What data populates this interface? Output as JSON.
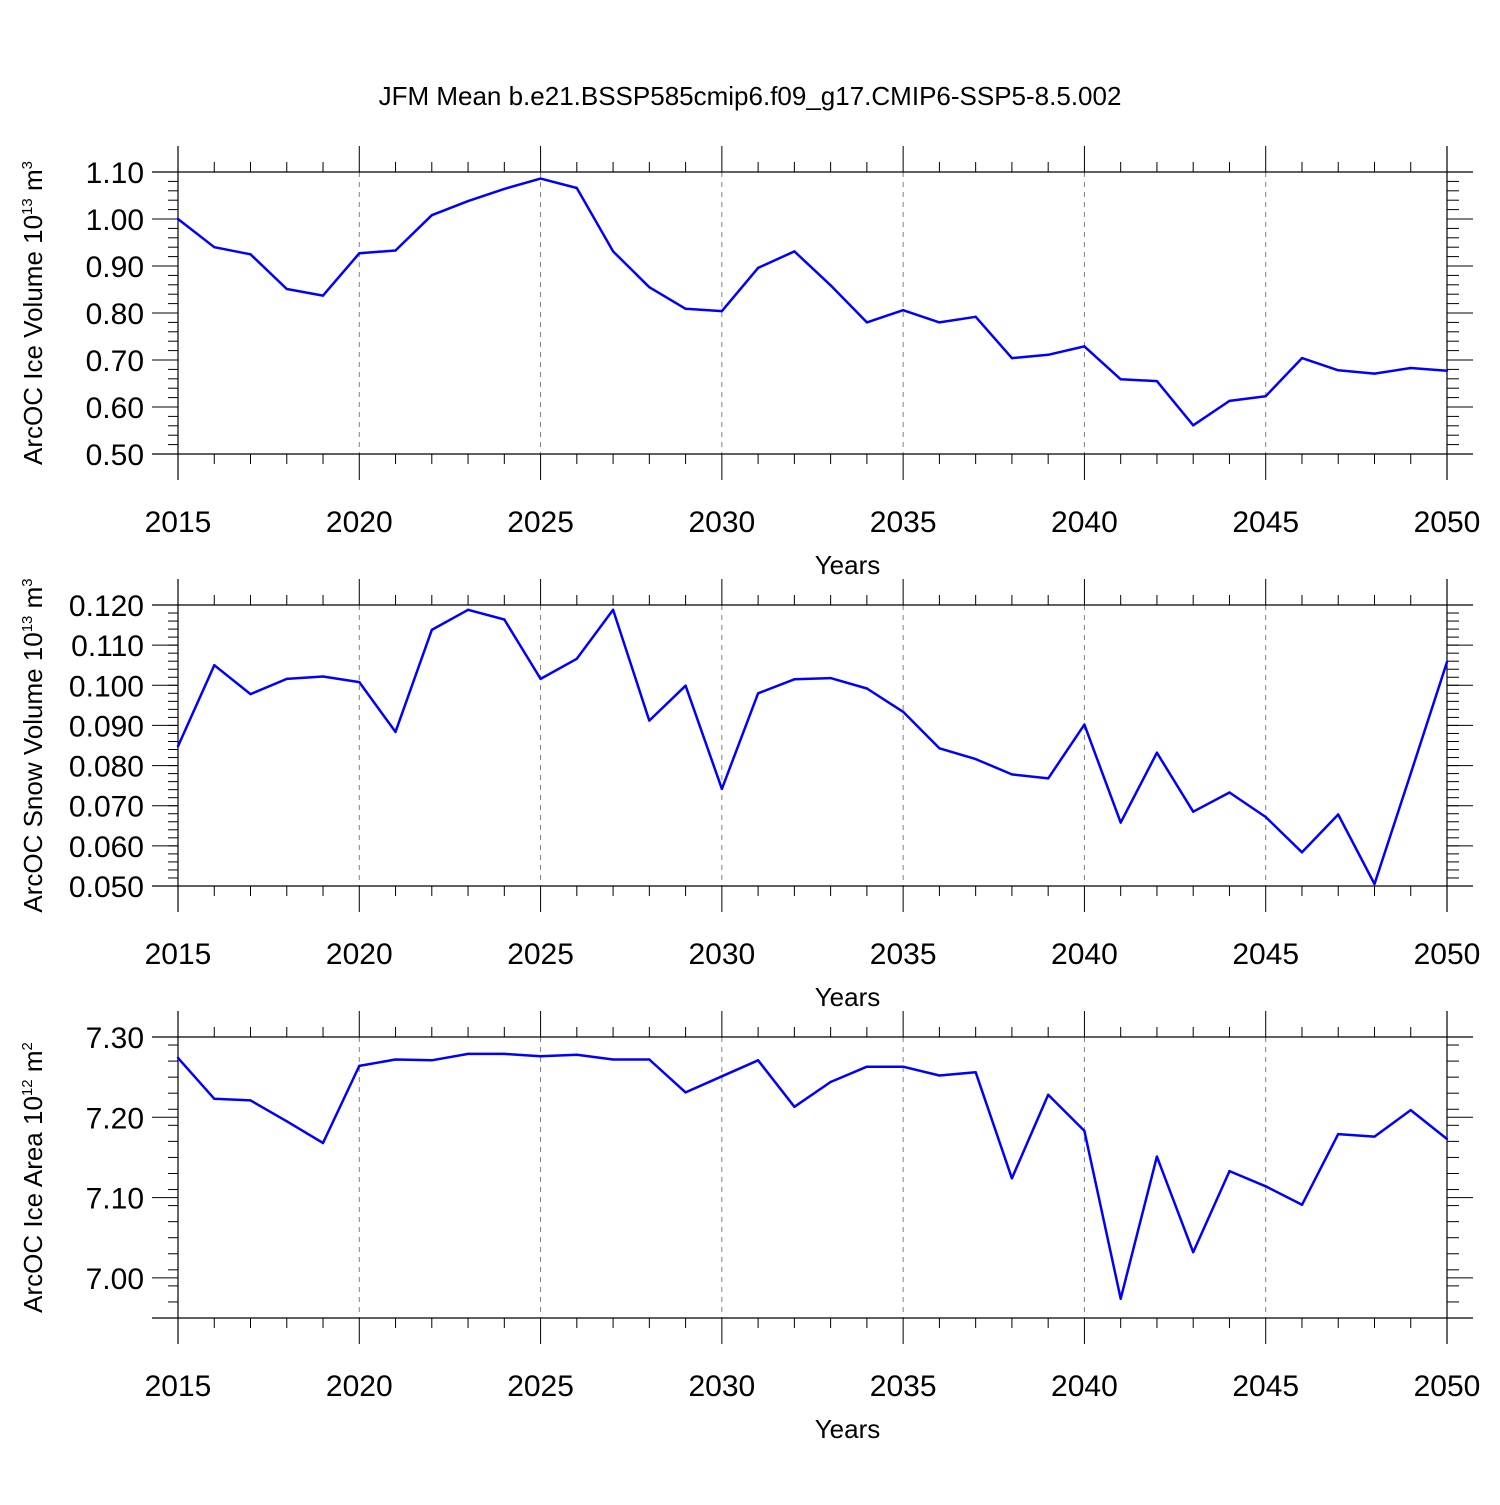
{
  "figure_title": "JFM Mean b.e21.BSSP585cmip6.f09_g17.CMIP6-SSP5-8.5.002",
  "colors": {
    "line": "#0000ff",
    "axis": "#000000",
    "grid": "#808080"
  },
  "chart_data": [
    {
      "type": "line",
      "ylabel": "ArcOC Ice Volume",
      "ylabel_units": "10",
      "ylabel_exp": "13",
      "ylabel_unit2": "m",
      "ylabel_unit2_exp": "3",
      "xlabel": "Years",
      "xlim": [
        2015,
        2050
      ],
      "ylim": [
        0.5,
        1.1
      ],
      "yticks": [
        0.5,
        0.6,
        0.7,
        0.8,
        0.9,
        1.0,
        1.1
      ],
      "ytick_labels": [
        "0.50",
        "0.60",
        "0.70",
        "0.80",
        "0.90",
        "1.00",
        "1.10"
      ],
      "xticks": [
        2015,
        2020,
        2025,
        2030,
        2035,
        2040,
        2045,
        2050
      ],
      "xtick_labels": [
        "2015",
        "2020",
        "2025",
        "2030",
        "2035",
        "2040",
        "2045",
        "2050"
      ],
      "x": [
        2015,
        2016,
        2017,
        2018,
        2019,
        2020,
        2021,
        2022,
        2023,
        2024,
        2025,
        2026,
        2027,
        2028,
        2029,
        2030,
        2031,
        2032,
        2033,
        2034,
        2035,
        2036,
        2037,
        2038,
        2039,
        2040,
        2041,
        2042,
        2043,
        2044,
        2045,
        2046,
        2047,
        2048,
        2049,
        2050
      ],
      "y": [
        1.0,
        0.94,
        0.925,
        0.851,
        0.837,
        0.927,
        0.933,
        1.008,
        1.038,
        1.064,
        1.086,
        1.066,
        0.931,
        0.855,
        0.809,
        0.804,
        0.896,
        0.931,
        0.859,
        0.78,
        0.806,
        0.78,
        0.792,
        0.704,
        0.711,
        0.729,
        0.659,
        0.655,
        0.561,
        0.613,
        0.623,
        0.704,
        0.678,
        0.671,
        0.683,
        0.677
      ]
    },
    {
      "type": "line",
      "ylabel": "ArcOC Snow Volume",
      "ylabel_units": "10",
      "ylabel_exp": "13",
      "ylabel_unit2": "m",
      "ylabel_unit2_exp": "3",
      "xlabel": "Years",
      "xlim": [
        2015,
        2050
      ],
      "ylim": [
        0.05,
        0.12
      ],
      "yticks": [
        0.05,
        0.06,
        0.07,
        0.08,
        0.09,
        0.1,
        0.11,
        0.12
      ],
      "ytick_labels": [
        "0.050",
        "0.060",
        "0.070",
        "0.080",
        "0.090",
        "0.100",
        "0.110",
        "0.120"
      ],
      "xticks": [
        2015,
        2020,
        2025,
        2030,
        2035,
        2040,
        2045,
        2050
      ],
      "xtick_labels": [
        "2015",
        "2020",
        "2025",
        "2030",
        "2035",
        "2040",
        "2045",
        "2050"
      ],
      "x": [
        2015,
        2016,
        2017,
        2018,
        2019,
        2020,
        2021,
        2022,
        2023,
        2024,
        2025,
        2026,
        2027,
        2028,
        2029,
        2030,
        2031,
        2032,
        2033,
        2034,
        2035,
        2036,
        2037,
        2038,
        2039,
        2040,
        2041,
        2042,
        2043,
        2044,
        2045,
        2046,
        2047,
        2048,
        2049,
        2050
      ],
      "y": [
        0.0848,
        0.105,
        0.0978,
        0.1016,
        0.1022,
        0.1008,
        0.0884,
        0.1138,
        0.1188,
        0.1164,
        0.1016,
        0.1066,
        0.1188,
        0.0912,
        0.0999,
        0.0742,
        0.098,
        0.1015,
        0.1018,
        0.0992,
        0.0934,
        0.0843,
        0.0816,
        0.0778,
        0.0768,
        0.0902,
        0.0658,
        0.0832,
        0.0685,
        0.0733,
        0.0672,
        0.0584,
        0.0678,
        0.0505,
        0.078,
        0.1058
      ]
    },
    {
      "type": "line",
      "ylabel": "ArcOC Ice Area",
      "ylabel_units": "10",
      "ylabel_exp": "12",
      "ylabel_unit2": "m",
      "ylabel_unit2_exp": "2",
      "xlabel": "Years",
      "xlim": [
        2015,
        2050
      ],
      "ylim": [
        6.95,
        7.3
      ],
      "yticks": [
        7.0,
        7.1,
        7.2,
        7.3
      ],
      "ytick_labels": [
        "7.00",
        "7.10",
        "7.20",
        "7.30"
      ],
      "xticks": [
        2015,
        2020,
        2025,
        2030,
        2035,
        2040,
        2045,
        2050
      ],
      "xtick_labels": [
        "2015",
        "2020",
        "2025",
        "2030",
        "2035",
        "2040",
        "2045",
        "2050"
      ],
      "x": [
        2015,
        2016,
        2017,
        2018,
        2019,
        2020,
        2021,
        2022,
        2023,
        2024,
        2025,
        2026,
        2027,
        2028,
        2029,
        2030,
        2031,
        2032,
        2033,
        2034,
        2035,
        2036,
        2037,
        2038,
        2039,
        2040,
        2041,
        2042,
        2043,
        2044,
        2045,
        2046,
        2047,
        2048,
        2049,
        2050
      ],
      "y": [
        7.274,
        7.223,
        7.221,
        7.195,
        7.168,
        7.264,
        7.272,
        7.271,
        7.279,
        7.279,
        7.276,
        7.278,
        7.272,
        7.272,
        7.231,
        7.251,
        7.271,
        7.213,
        7.244,
        7.263,
        7.263,
        7.252,
        7.256,
        7.124,
        7.228,
        7.183,
        6.974,
        7.151,
        7.032,
        7.133,
        7.114,
        7.091,
        7.179,
        7.176,
        7.209,
        7.173
      ]
    }
  ]
}
